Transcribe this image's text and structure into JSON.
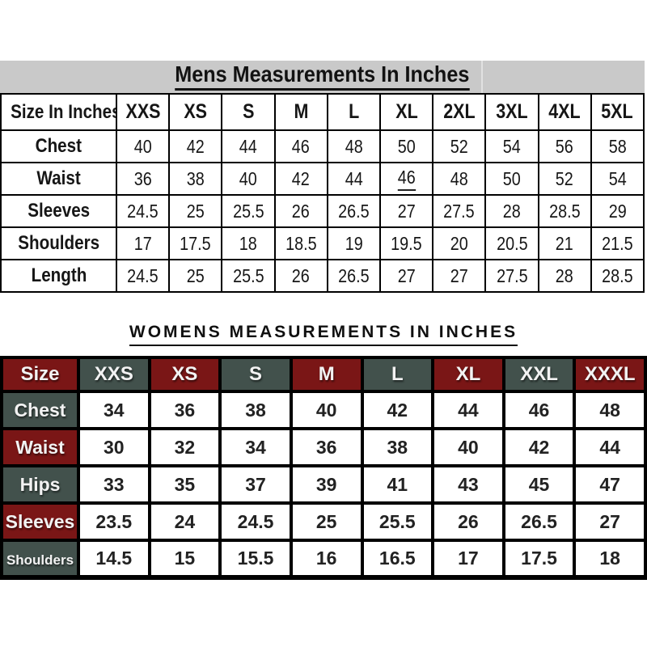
{
  "colors": {
    "maroon": "#7a1616",
    "dark_green": "#42514c",
    "title_band_gray": "#c9c9c9"
  },
  "mens": {
    "title": "Mens Measurements In Inches",
    "columns": [
      "Size In Inches",
      "XXS",
      "XS",
      "S",
      "M",
      "L",
      "XL",
      "2XL",
      "3XL",
      "4XL",
      "5XL"
    ],
    "rows": [
      {
        "label": "Chest",
        "values": [
          "40",
          "42",
          "44",
          "46",
          "48",
          "50",
          "52",
          "54",
          "56",
          "58"
        ]
      },
      {
        "label": "Waist",
        "values": [
          "36",
          "38",
          "40",
          "42",
          "44",
          "46",
          "48",
          "50",
          "52",
          "54"
        ]
      },
      {
        "label": "Sleeves",
        "values": [
          "24.5",
          "25",
          "25.5",
          "26",
          "26.5",
          "27",
          "27.5",
          "28",
          "28.5",
          "29"
        ]
      },
      {
        "label": "Shoulders",
        "values": [
          "17",
          "17.5",
          "18",
          "18.5",
          "19",
          "19.5",
          "20",
          "20.5",
          "21",
          "21.5"
        ]
      },
      {
        "label": "Length",
        "values": [
          "24.5",
          "25",
          "25.5",
          "26",
          "26.5",
          "27",
          "27",
          "27.5",
          "28",
          "28.5"
        ]
      }
    ],
    "underlined_cell": {
      "row_label": "Waist",
      "column_label": "XL"
    }
  },
  "womens": {
    "title": "WOMENS MEASUREMENTS IN INCHES",
    "columns": [
      "Size",
      "XXS",
      "XS",
      "S",
      "M",
      "L",
      "XL",
      "XXL",
      "XXXL"
    ],
    "rows": [
      {
        "label": "Chest",
        "values": [
          "34",
          "36",
          "38",
          "40",
          "42",
          "44",
          "46",
          "48"
        ]
      },
      {
        "label": "Waist",
        "values": [
          "30",
          "32",
          "34",
          "36",
          "38",
          "40",
          "42",
          "44"
        ]
      },
      {
        "label": "Hips",
        "values": [
          "33",
          "35",
          "37",
          "39",
          "41",
          "43",
          "45",
          "47"
        ]
      },
      {
        "label": "Sleeves",
        "values": [
          "23.5",
          "24",
          "24.5",
          "25",
          "25.5",
          "26",
          "26.5",
          "27"
        ]
      },
      {
        "label": "Shoulders",
        "values": [
          "14.5",
          "15",
          "15.5",
          "16",
          "16.5",
          "17",
          "17.5",
          "18"
        ]
      }
    ]
  }
}
